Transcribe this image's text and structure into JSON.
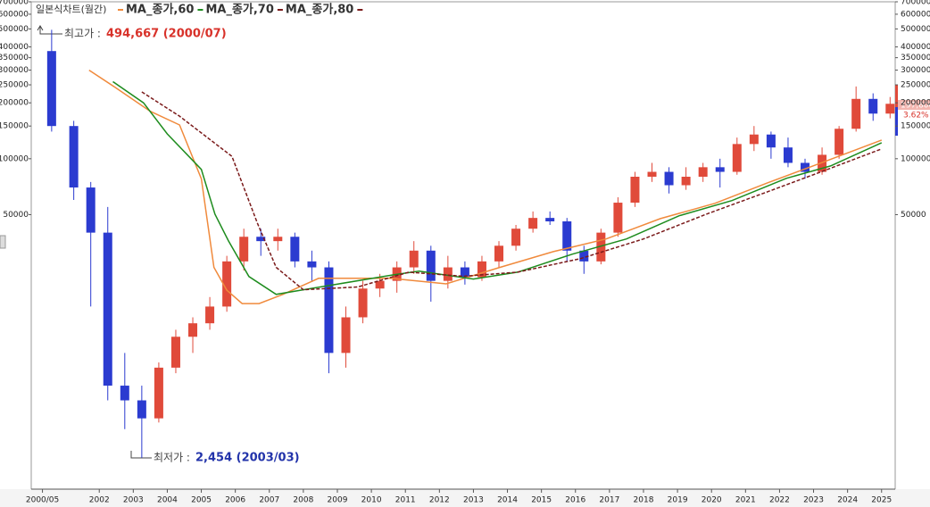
{
  "chart_data": {
    "type": "candlestick",
    "title": "일본식차트(월간)",
    "log_scale": true,
    "up_color": "#e04a3a",
    "down_color": "#2b3bd0",
    "ylim": [
      1700,
      700000
    ],
    "yticks": [
      700000,
      600000,
      500000,
      400000,
      350000,
      300000,
      250000,
      200000,
      150000,
      100000,
      50000
    ],
    "xlim": [
      2000,
      2025.4
    ],
    "xticks": [
      {
        "value": 2000.33,
        "label": "2000/05"
      },
      2002,
      2003,
      2004,
      2005,
      2006,
      2007,
      2008,
      2009,
      2010,
      2011,
      2012,
      2013,
      2014,
      2015,
      2016,
      2017,
      2018,
      2019,
      2020,
      2021,
      2022,
      2023,
      2024,
      2025
    ],
    "x": [
      2000.6,
      2001.25,
      2001.75,
      2002.25,
      2002.75,
      2003.25,
      2003.75,
      2004.25,
      2004.75,
      2005.25,
      2005.75,
      2006.25,
      2006.75,
      2007.25,
      2007.75,
      2008.25,
      2008.75,
      2009.25,
      2009.75,
      2010.25,
      2010.75,
      2011.25,
      2011.75,
      2012.25,
      2012.75,
      2013.25,
      2013.75,
      2014.25,
      2014.75,
      2015.25,
      2015.75,
      2016.25,
      2016.75,
      2017.25,
      2017.75,
      2018.25,
      2018.75,
      2019.25,
      2019.75,
      2020.25,
      2020.75,
      2021.25,
      2021.75,
      2022.25,
      2022.75,
      2023.25,
      2023.75,
      2024.25,
      2024.75,
      2025.25
    ],
    "open": [
      380000,
      150000,
      70000,
      40000,
      6000,
      5000,
      4000,
      7500,
      11000,
      13000,
      16000,
      28000,
      38000,
      36000,
      38000,
      28000,
      26000,
      9000,
      14000,
      20000,
      22000,
      26000,
      32000,
      22000,
      26000,
      23000,
      28000,
      34000,
      42000,
      48000,
      46000,
      32000,
      28000,
      40000,
      58000,
      80000,
      85000,
      72000,
      80000,
      90000,
      85000,
      120000,
      135000,
      115000,
      95000,
      85000,
      105000,
      145000,
      210000,
      175000
    ],
    "high": [
      494667,
      160000,
      75000,
      55000,
      9000,
      6000,
      8000,
      12000,
      14000,
      18000,
      30000,
      42000,
      42000,
      42000,
      40000,
      32000,
      28000,
      16000,
      22000,
      24000,
      28000,
      36000,
      34000,
      30000,
      28000,
      30000,
      36000,
      44000,
      52000,
      52000,
      48000,
      34000,
      42000,
      62000,
      85000,
      95000,
      90000,
      90000,
      95000,
      100000,
      130000,
      150000,
      140000,
      130000,
      100000,
      115000,
      150000,
      245000,
      225000,
      215000
    ],
    "low": [
      140000,
      60000,
      16000,
      5000,
      3500,
      2454,
      3800,
      7000,
      9000,
      12000,
      15000,
      25000,
      30000,
      32000,
      26000,
      22000,
      7000,
      7500,
      13000,
      18000,
      19000,
      24000,
      17000,
      20000,
      21000,
      22000,
      26000,
      32000,
      40000,
      44000,
      28000,
      24000,
      27000,
      38000,
      55000,
      75000,
      65000,
      68000,
      75000,
      70000,
      82000,
      110000,
      100000,
      90000,
      78000,
      82000,
      100000,
      140000,
      160000,
      165000
    ],
    "close": [
      150000,
      70000,
      40000,
      6000,
      5000,
      4000,
      7500,
      11000,
      13000,
      16000,
      28000,
      38000,
      36000,
      38000,
      28000,
      26000,
      9000,
      14000,
      20000,
      22000,
      26000,
      32000,
      22000,
      26000,
      23000,
      28000,
      34000,
      42000,
      48000,
      46000,
      32000,
      28000,
      40000,
      58000,
      80000,
      85000,
      72000,
      80000,
      90000,
      85000,
      120000,
      135000,
      115000,
      95000,
      85000,
      105000,
      145000,
      210000,
      175000,
      197600
    ],
    "series": [
      {
        "name": "MA_종가,60",
        "color": "#f08a3c",
        "dash": false,
        "x": [
          2001.7,
          2002.5,
          2003.5,
          2004.36,
          2005.0,
          2005.37,
          2005.75,
          2006.2,
          2006.7,
          2007.4,
          2008.45,
          2010.55,
          2012.2,
          2013.75,
          2015.35,
          2016.9,
          2018.5,
          2020.1,
          2021.65,
          2023.2,
          2025.0
        ],
        "values": [
          300000,
          240000,
          180000,
          152000,
          78000,
          26000,
          19600,
          16600,
          16600,
          18600,
          22700,
          22700,
          21200,
          25900,
          31600,
          37000,
          47600,
          57500,
          74200,
          94600,
          126000
        ]
      },
      {
        "name": "MA_종가,70",
        "color": "#1e8c1e",
        "dash": false,
        "x": [
          2002.4,
          2003.3,
          2004.0,
          2005.0,
          2005.4,
          2005.8,
          2006.4,
          2007.2,
          2008.0,
          2009.05,
          2010.65,
          2011.4,
          2013.0,
          2014.3,
          2015.9,
          2017.5,
          2019.05,
          2020.6,
          2022.2,
          2023.5,
          2025.0
        ],
        "values": [
          260000,
          200000,
          136000,
          87600,
          50300,
          36100,
          23200,
          18600,
          19700,
          21200,
          23700,
          24800,
          22500,
          24500,
          30600,
          37000,
          49300,
          59500,
          78400,
          91500,
          122000
        ]
      },
      {
        "name": "MA_종가,80",
        "color": "#7a1a1a",
        "dash": true,
        "x": [
          2003.25,
          2004.35,
          2005.9,
          2006.65,
          2007.2,
          2008.0,
          2009.6,
          2011.1,
          2012.7,
          2014.3,
          2016.15,
          2018.0,
          2019.85,
          2021.65,
          2023.2,
          2025.0
        ],
        "values": [
          229000,
          170000,
          103000,
          45000,
          26000,
          19700,
          20400,
          24500,
          23300,
          24500,
          29000,
          37000,
          50300,
          66400,
          84700,
          113000
        ]
      }
    ],
    "annotations": [
      {
        "label": "최고가 :",
        "text": "494,667 (2000/07)",
        "color": "#d8322a"
      },
      {
        "label": "최저가 :",
        "text": "2,454 (2003/03)",
        "color": "#2233aa"
      }
    ],
    "last_label": "197,600",
    "change_label": "3.62%"
  }
}
